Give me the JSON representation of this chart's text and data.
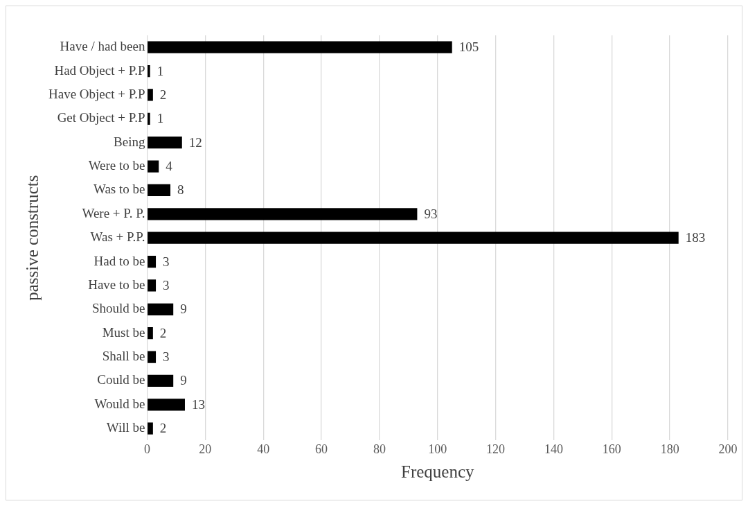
{
  "chart_data": {
    "type": "bar",
    "orientation": "horizontal",
    "xlabel": "Frequency",
    "ylabel": "passive constructs",
    "categories": [
      "Have / had been",
      "Had Object + P.P",
      "Have Object + P.P",
      "Get Object + P.P",
      "Being",
      "Were to be",
      "Was to be",
      "Were + P. P.",
      "Was + P.P.",
      "Had to be",
      "Have to be",
      "Should be",
      "Must be",
      "Shall be",
      "Could be",
      "Would be",
      "Will be"
    ],
    "values": [
      105,
      1,
      2,
      1,
      12,
      4,
      8,
      93,
      183,
      3,
      3,
      9,
      2,
      3,
      9,
      13,
      2
    ],
    "color": "#000000",
    "xlim": [
      0,
      200
    ],
    "xticks": [
      0,
      20,
      40,
      60,
      80,
      100,
      120,
      140,
      160,
      180,
      200
    ],
    "grid": "x",
    "legend": false,
    "data_labels": true
  }
}
